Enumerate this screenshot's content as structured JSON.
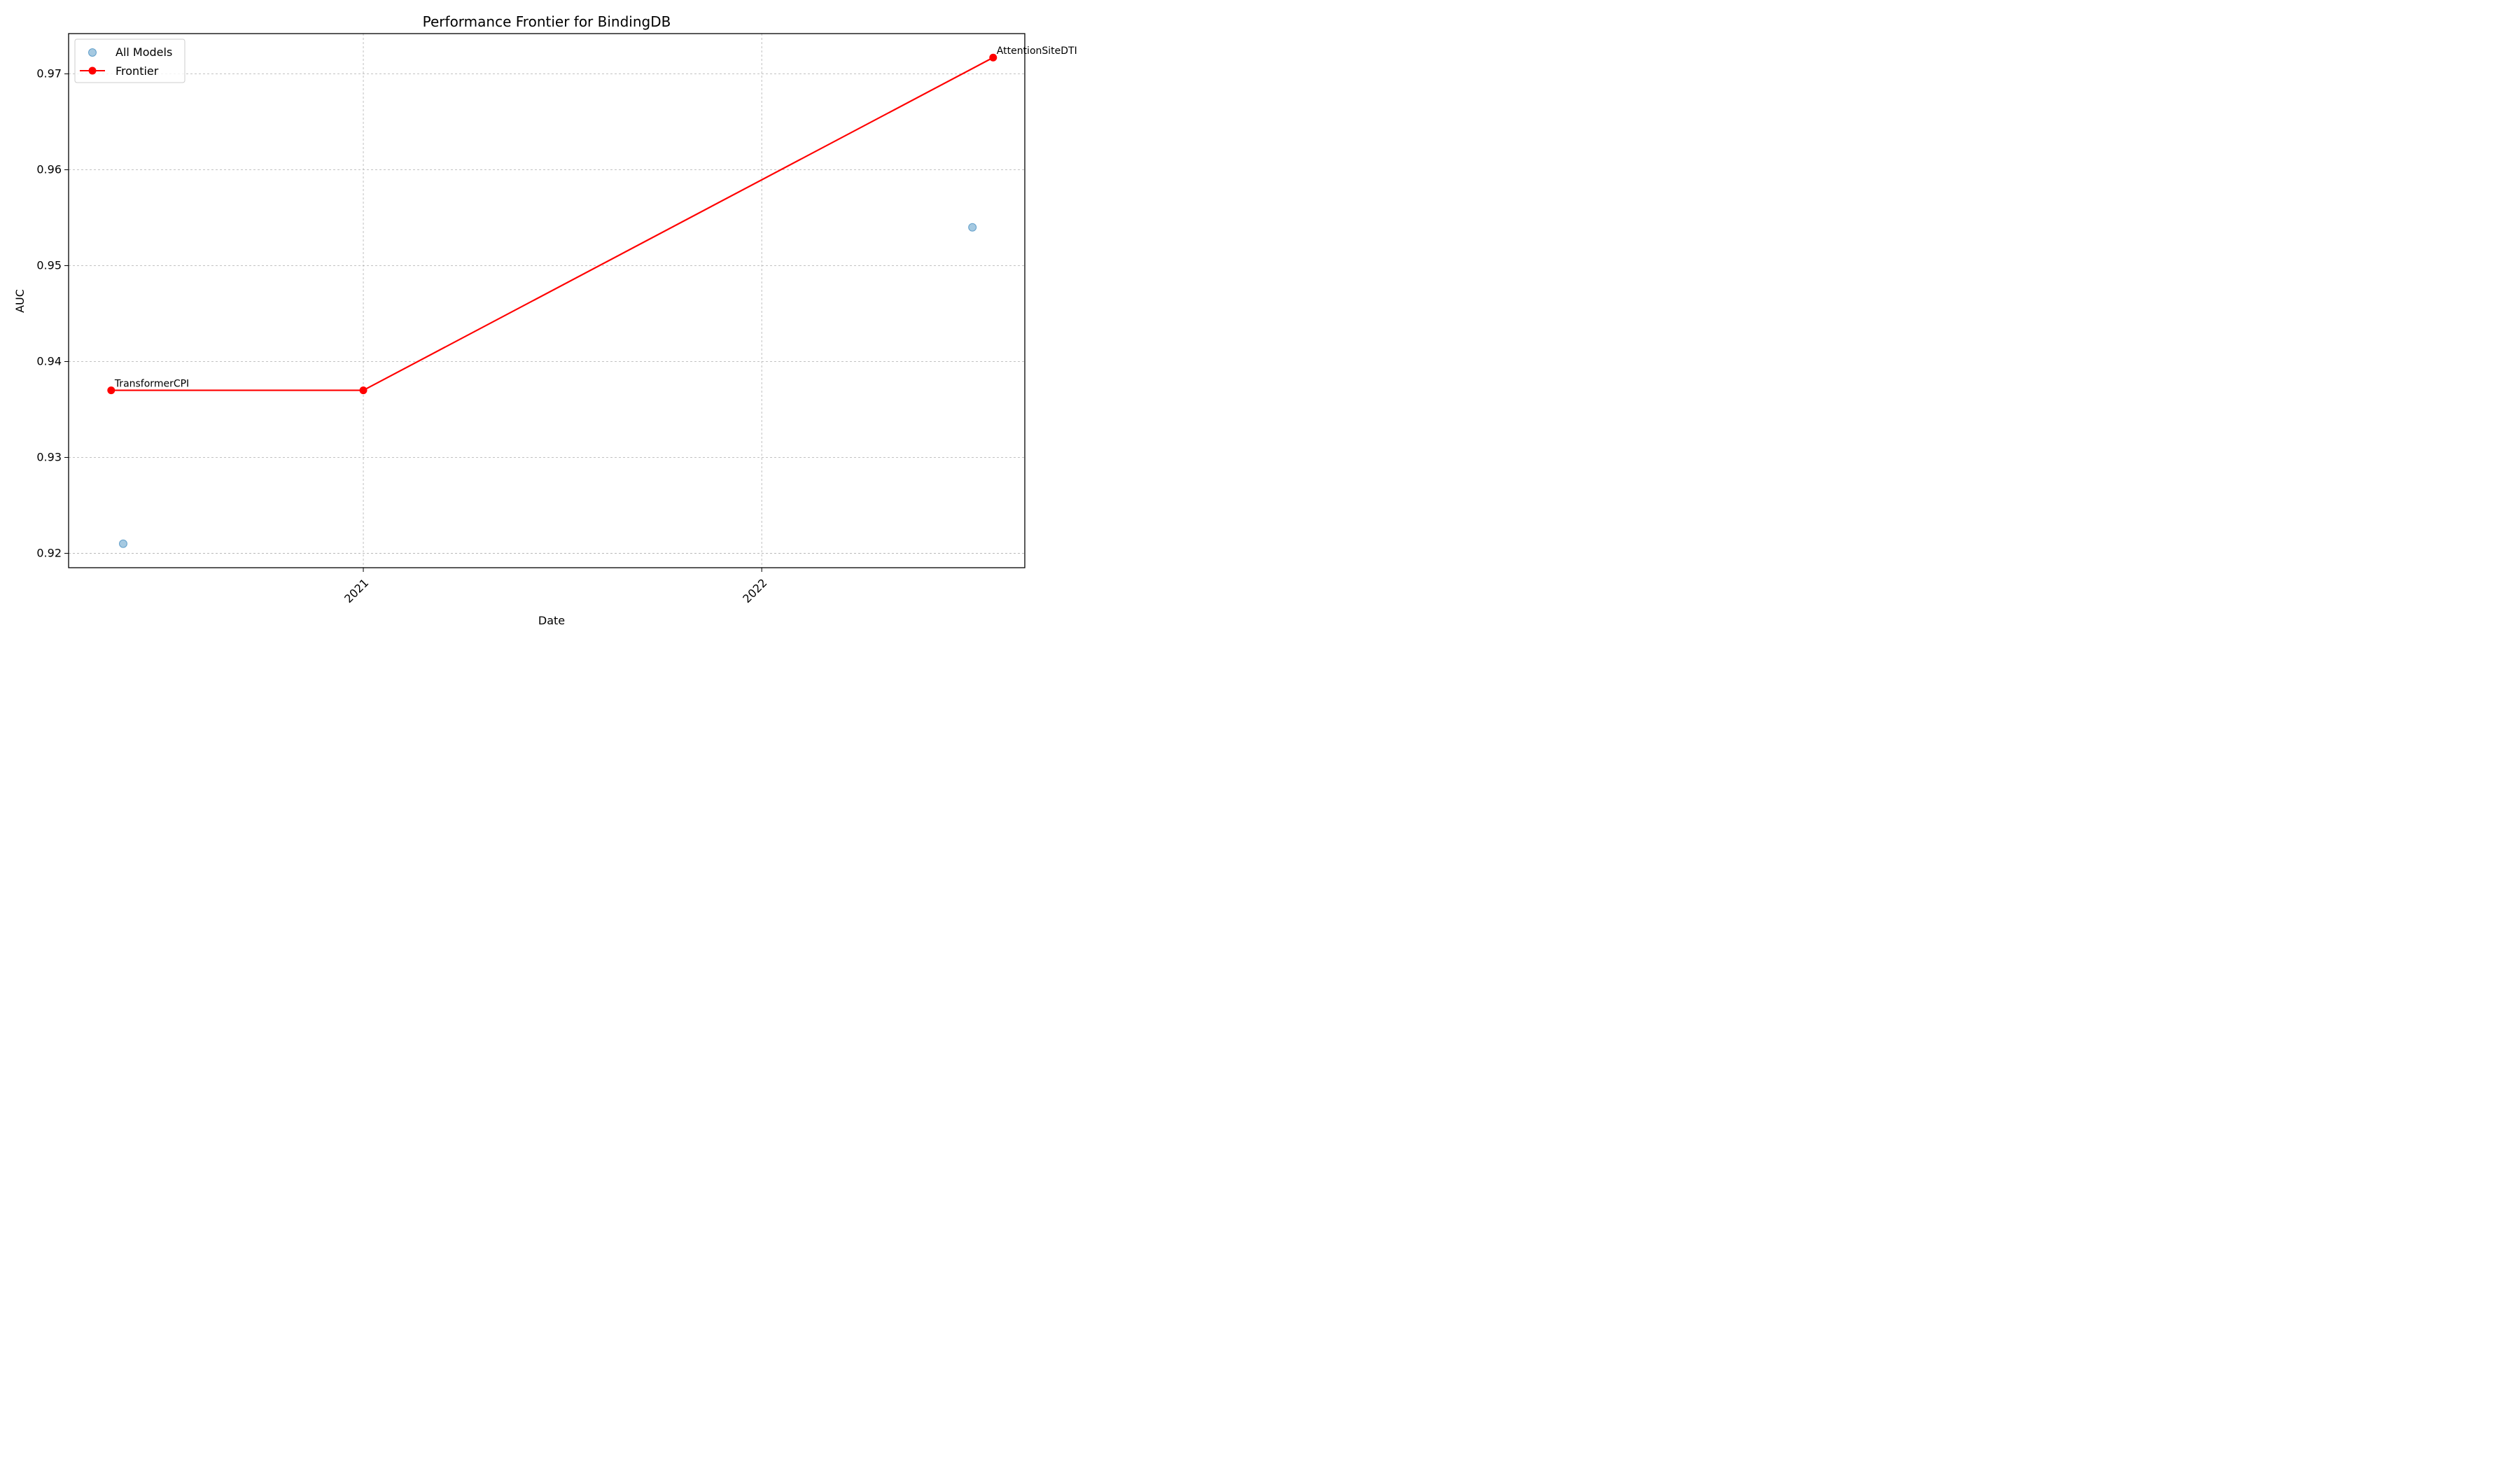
{
  "chart_data": {
    "type": "line",
    "title": "Performance Frontier for BindingDB",
    "xlabel": "Date",
    "ylabel": "AUC",
    "x_ticks": [
      "2021",
      "2022"
    ],
    "y_ticks": [
      "0.92",
      "0.93",
      "0.94",
      "0.95",
      "0.96",
      "0.97"
    ],
    "xlim": [
      "2020-04-06",
      "2022-08-30"
    ],
    "ylim": [
      0.9185,
      0.9742
    ],
    "grid": true,
    "legend_position": "top-left",
    "series": [
      {
        "name": "All Models",
        "kind": "scatter",
        "color": "#1f77b4",
        "points": [
          {
            "x": "2020-05-26",
            "y": 0.921
          },
          {
            "x": "2022-07-13",
            "y": 0.954
          }
        ]
      },
      {
        "name": "Frontier",
        "kind": "line",
        "color": "#ff0000",
        "points": [
          {
            "x": "2020-05-15",
            "y": 0.937
          },
          {
            "x": "2021-01-01",
            "y": 0.937
          },
          {
            "x": "2022-08-01",
            "y": 0.9717
          }
        ]
      }
    ],
    "annotations": [
      {
        "text": "TransformerCPI",
        "x": "2020-05-15",
        "y": 0.937
      },
      {
        "text": "AttentionSiteDTI",
        "x": "2022-08-01",
        "y": 0.9717
      }
    ]
  }
}
